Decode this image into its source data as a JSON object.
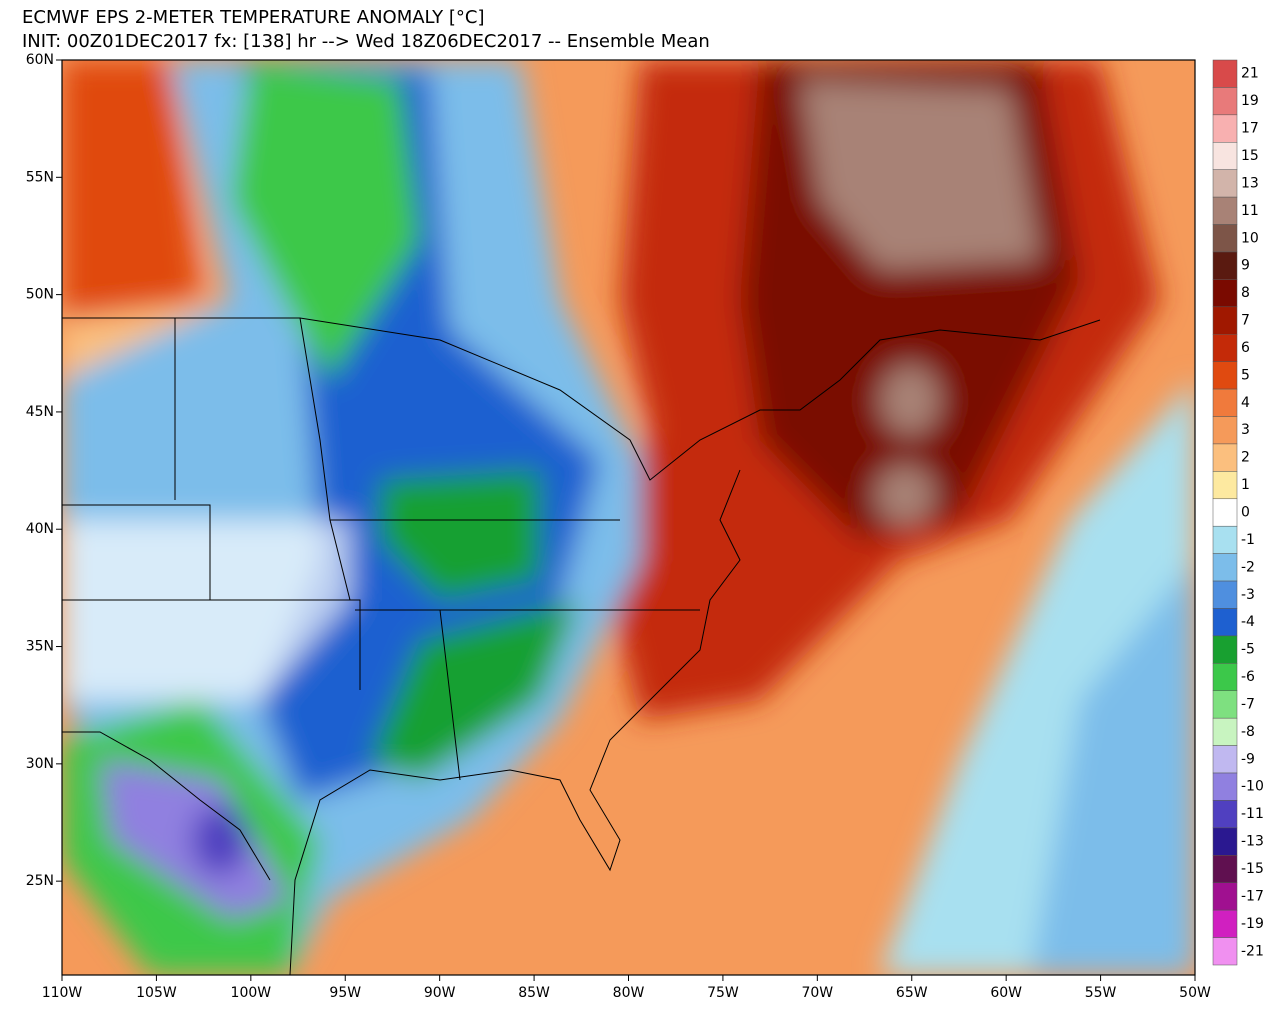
{
  "header": {
    "title": "ECMWF EPS 2-METER TEMPERATURE ANOMALY [°C]",
    "subtitle": "INIT: 00Z01DEC2017 fx: [138] hr --> Wed 18Z06DEC2017 -- Ensemble Mean"
  },
  "map": {
    "lon_range": [
      -110,
      -50
    ],
    "lat_range": [
      21,
      60
    ],
    "lon_ticks": [
      {
        "value": -110,
        "label": "110W"
      },
      {
        "value": -105,
        "label": "105W"
      },
      {
        "value": -100,
        "label": "100W"
      },
      {
        "value": -95,
        "label": "95W"
      },
      {
        "value": -90,
        "label": "90W"
      },
      {
        "value": -85,
        "label": "85W"
      },
      {
        "value": -80,
        "label": "80W"
      },
      {
        "value": -75,
        "label": "75W"
      },
      {
        "value": -70,
        "label": "70W"
      },
      {
        "value": -65,
        "label": "65W"
      },
      {
        "value": -60,
        "label": "60W"
      },
      {
        "value": -55,
        "label": "55W"
      },
      {
        "value": -50,
        "label": "50W"
      }
    ],
    "lat_ticks": [
      {
        "value": 60,
        "label": "60N"
      },
      {
        "value": 55,
        "label": "55N"
      },
      {
        "value": 50,
        "label": "50N"
      },
      {
        "value": 45,
        "label": "45N"
      },
      {
        "value": 40,
        "label": "40N"
      },
      {
        "value": 35,
        "label": "35N"
      },
      {
        "value": 30,
        "label": "30N"
      },
      {
        "value": 25,
        "label": "25N"
      }
    ]
  },
  "legend": {
    "levels": [
      21,
      19,
      17,
      15,
      13,
      11,
      10,
      9,
      8,
      7,
      6,
      5,
      4,
      3,
      2,
      1,
      0,
      -1,
      -2,
      -3,
      -4,
      -5,
      -6,
      -7,
      -8,
      -9,
      -10,
      -11,
      -13,
      -15,
      -17,
      -19,
      -21
    ],
    "colors": [
      "#d84a4a",
      "#e87a7a",
      "#f8b0b0",
      "#f8e4e0",
      "#d2b4aa",
      "#a88276",
      "#7d5548",
      "#5a1a10",
      "#7a0a00",
      "#a01800",
      "#c42a08",
      "#e04a10",
      "#f07a3c",
      "#f59a5a",
      "#fbbf7e",
      "#fde9a0",
      "#ffffff",
      "#a8e0f0",
      "#7cbdea",
      "#4f8fdf",
      "#1e60d0",
      "#18a030",
      "#3cc84a",
      "#7ee080",
      "#c8f4c0",
      "#c0b8f0",
      "#9080e0",
      "#5040c0",
      "#2a1890",
      "#601050",
      "#a01090",
      "#d020c0",
      "#f090f0"
    ]
  }
}
